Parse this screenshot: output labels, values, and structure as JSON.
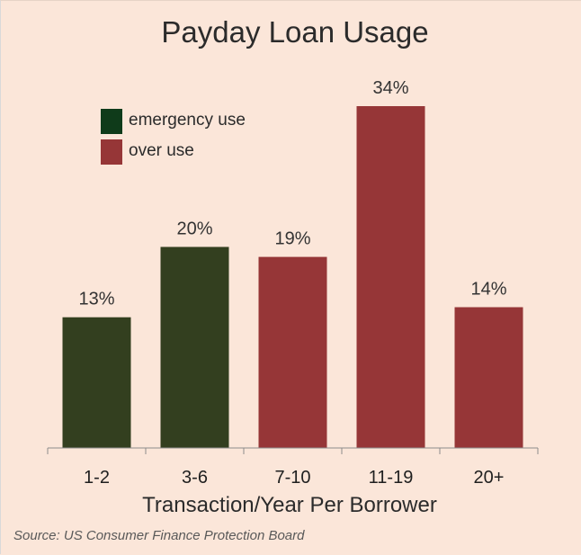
{
  "chart_data": {
    "type": "bar",
    "title": "Payday Loan Usage",
    "xlabel": "Transaction/Year Per Borrower",
    "ylabel": "",
    "categories": [
      "1-2",
      "3-6",
      "7-10",
      "11-19",
      "20+"
    ],
    "values": [
      13,
      20,
      19,
      34,
      14
    ],
    "data_labels": [
      "13%",
      "20%",
      "19%",
      "34%",
      "14%"
    ],
    "bar_groups": [
      "emergency",
      "emergency",
      "over",
      "over",
      "over"
    ],
    "ylim": [
      0,
      34
    ],
    "grid": false,
    "legend": {
      "placement": "top-left",
      "entries": [
        {
          "key": "emergency",
          "label": "emergency use",
          "color": "#0f3b1a"
        },
        {
          "key": "over",
          "label": "over use",
          "color": "#963637"
        }
      ]
    },
    "colors": {
      "emergency": "#333f1f",
      "over": "#963637",
      "background": "#fbe6d9"
    }
  },
  "source": "Source: US Consumer Finance Protection Board"
}
